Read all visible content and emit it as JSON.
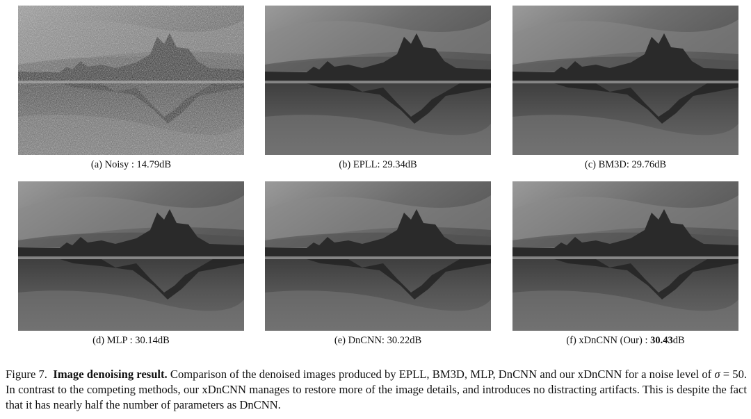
{
  "panels": [
    {
      "id": "a",
      "caption": "(a) Noisy : 14.79dB",
      "noise": "heavy"
    },
    {
      "id": "b",
      "caption": "(b) EPLL: 29.34dB",
      "noise": "light"
    },
    {
      "id": "c",
      "caption": "(c) BM3D: 29.76dB",
      "noise": "light"
    },
    {
      "id": "d",
      "caption": "(d) MLP : 30.14dB",
      "noise": "light"
    },
    {
      "id": "e",
      "caption": "(e) DnCNN: 30.22dB",
      "noise": "light"
    },
    {
      "id": "f",
      "caption_prefix": "(f) xDnCNN (Our) : ",
      "caption_bold": "30.43",
      "caption_suffix": "dB",
      "noise": "light"
    }
  ],
  "figure_caption": {
    "label": "Figure 7.",
    "heading": "Image denoising result.",
    "text_1": "Comparison of the denoised images produced by EPLL, BM3D, MLP, DnCNN and our xDnCNN for a noise level of ",
    "sigma": "σ",
    "text_eq": " = 50",
    "text_2": ". In contrast to the competing methods, our xDnCNN manages to restore more of the image details, and introduces no distracting artifacts. This is despite the fact that it has nearly half the number of parameters as DnCNN."
  }
}
